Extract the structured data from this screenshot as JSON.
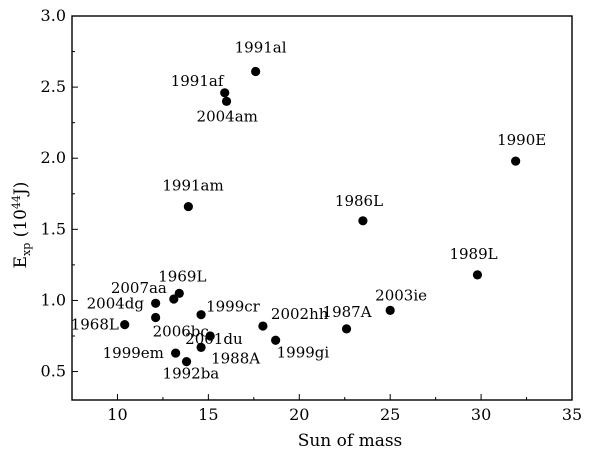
{
  "chart_data": {
    "type": "scatter",
    "title": "",
    "xlabel": "Sun of mass",
    "ylabel_main": "E",
    "ylabel_sub": "xp",
    "ylabel_unit_open": " (10",
    "ylabel_unit_exp": "44",
    "ylabel_unit_close": "J)",
    "xlim": [
      7.5,
      35
    ],
    "ylim": [
      0.3,
      3.0
    ],
    "xticks": [
      10,
      15,
      20,
      25,
      30,
      35
    ],
    "yticks": [
      0.5,
      1.0,
      1.5,
      2.0,
      2.5,
      3.0
    ],
    "x_tick_labels": [
      "10",
      "15",
      "20",
      "25",
      "30",
      "35"
    ],
    "y_tick_labels": [
      "0.5",
      "1.0",
      "1.5",
      "2.0",
      "2.5",
      "3.0"
    ],
    "points": [
      {
        "label": "1991al",
        "x": 17.6,
        "y": 2.61
      },
      {
        "label": "1991af",
        "x": 15.9,
        "y": 2.46
      },
      {
        "label": "2004am",
        "x": 16.0,
        "y": 2.4
      },
      {
        "label": "1990E",
        "x": 31.9,
        "y": 1.98
      },
      {
        "label": "1991am",
        "x": 13.9,
        "y": 1.66
      },
      {
        "label": "1986L",
        "x": 23.5,
        "y": 1.56
      },
      {
        "label": "1989L",
        "x": 29.8,
        "y": 1.18
      },
      {
        "label": "1969L",
        "x": 13.4,
        "y": 1.05
      },
      {
        "label": "2007aa",
        "x": 13.1,
        "y": 1.01
      },
      {
        "label": "2004dg",
        "x": 12.1,
        "y": 0.98
      },
      {
        "label": "2003ie",
        "x": 25.0,
        "y": 0.93
      },
      {
        "label": "1999cr",
        "x": 14.6,
        "y": 0.9
      },
      {
        "label": "2006bc",
        "x": 12.1,
        "y": 0.88
      },
      {
        "label": "1968L",
        "x": 10.4,
        "y": 0.83
      },
      {
        "label": "2002hh",
        "x": 18.0,
        "y": 0.82
      },
      {
        "label": "1987A",
        "x": 22.6,
        "y": 0.8
      },
      {
        "label": "2001du",
        "x": 15.1,
        "y": 0.75
      },
      {
        "label": "1999gi",
        "x": 18.7,
        "y": 0.72
      },
      {
        "label": "1988A",
        "x": 14.6,
        "y": 0.67
      },
      {
        "label": "1999em",
        "x": 13.2,
        "y": 0.63
      },
      {
        "label": "1992ba",
        "x": 13.8,
        "y": 0.57
      }
    ]
  }
}
